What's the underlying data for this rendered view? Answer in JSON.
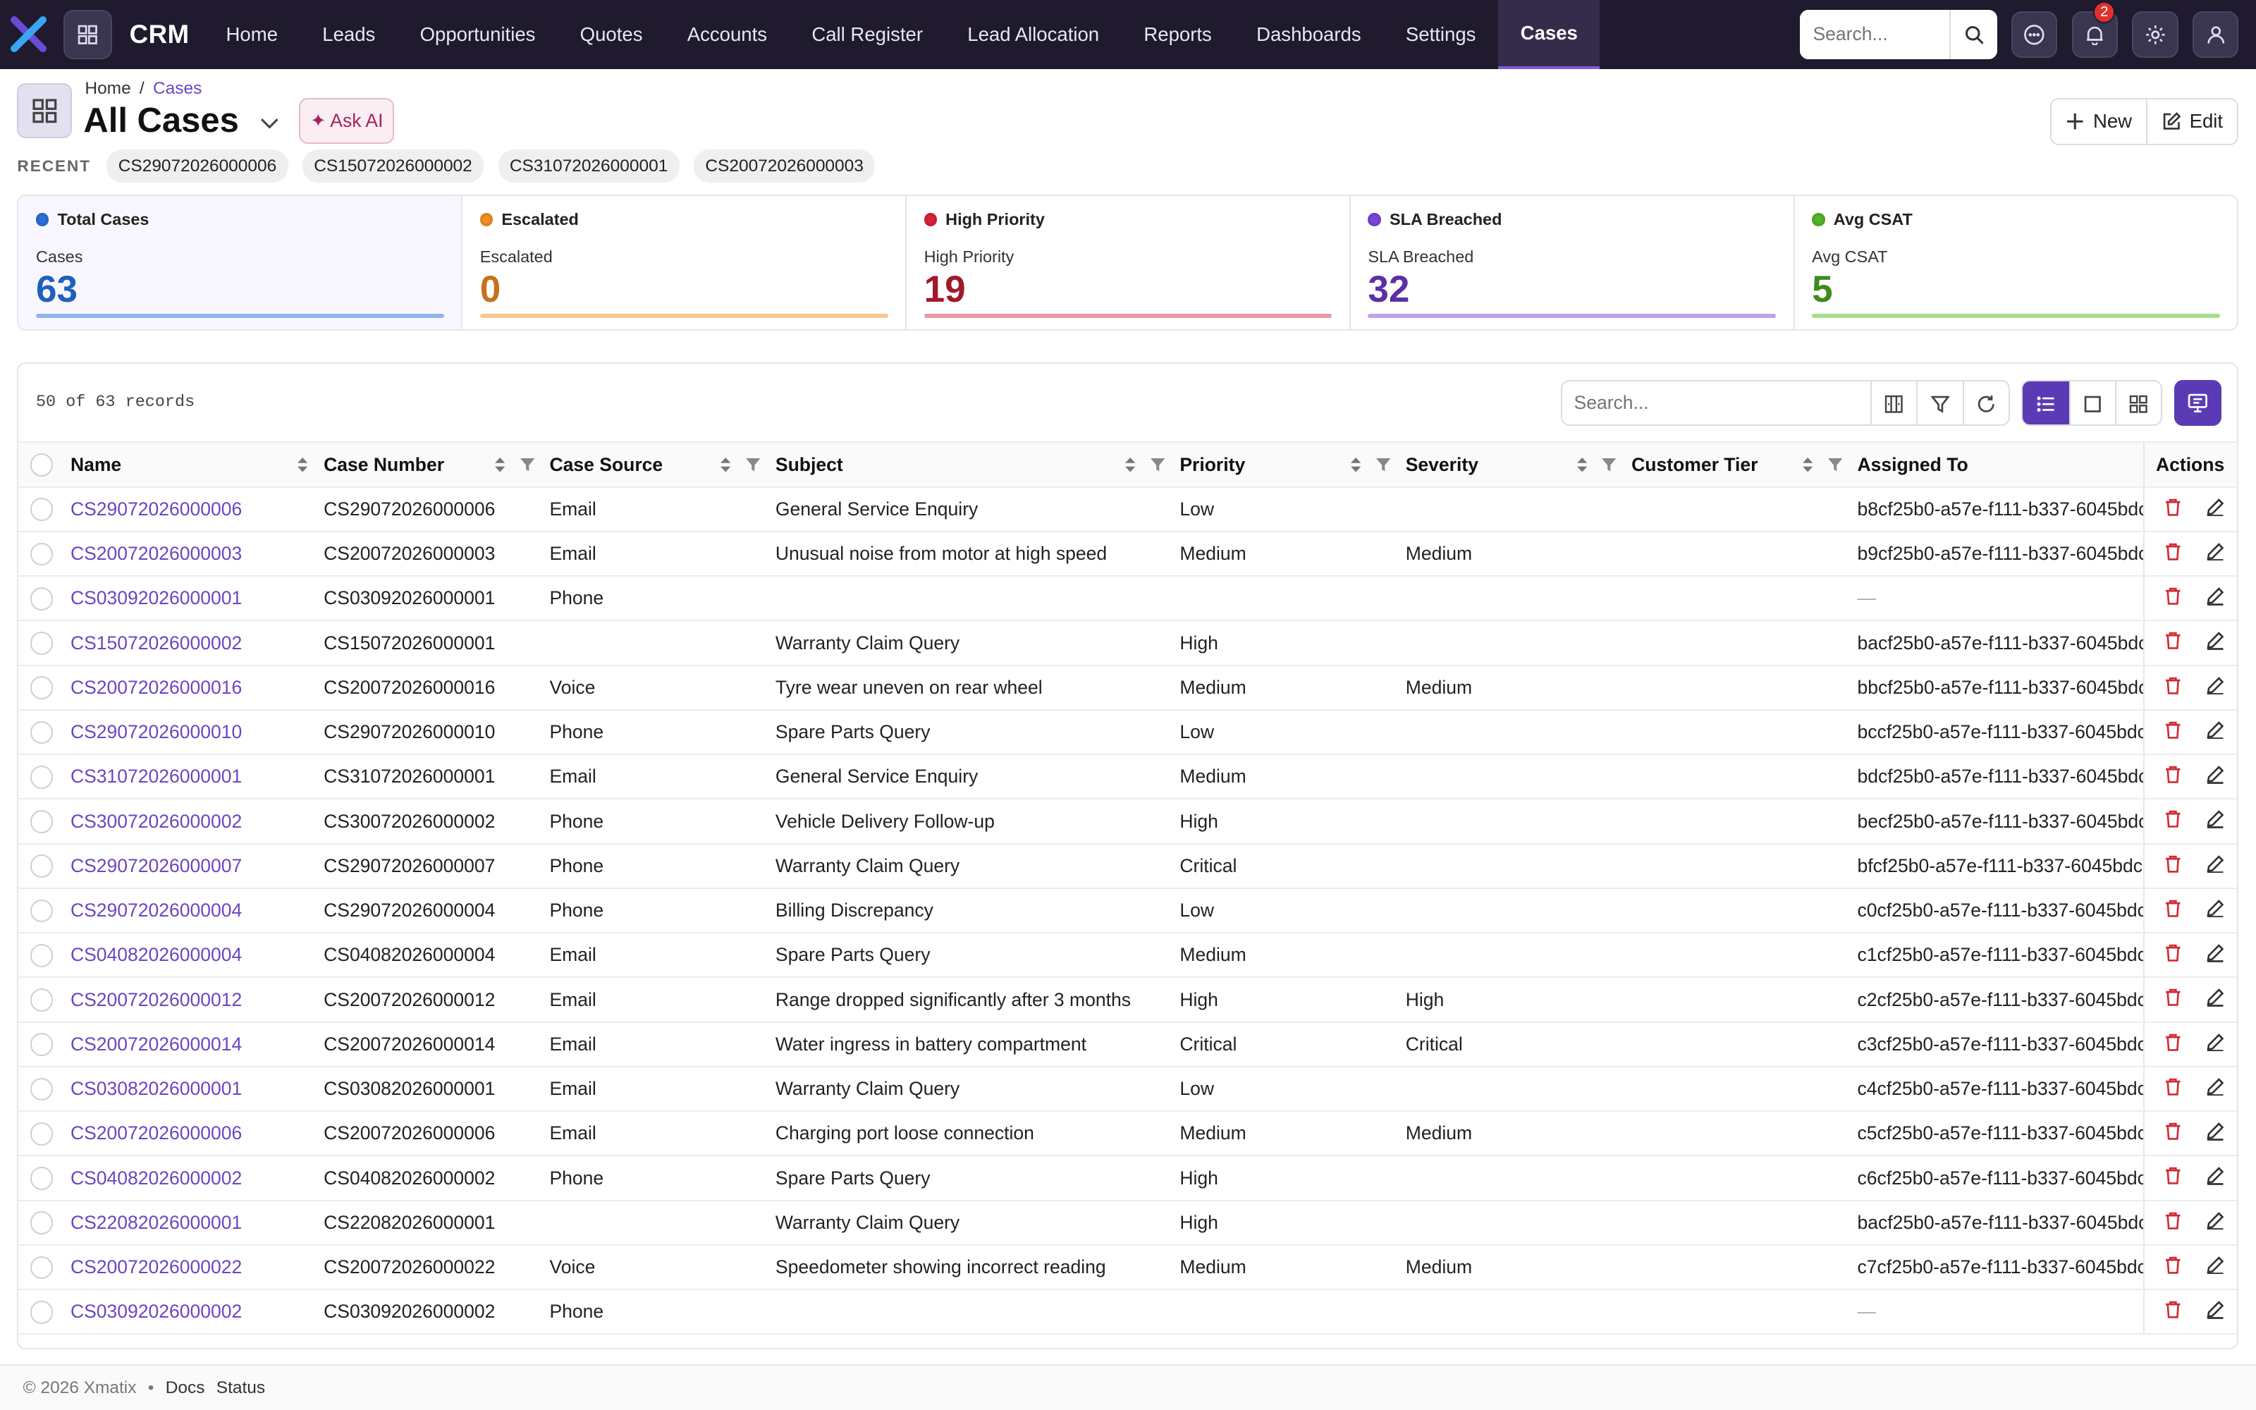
{
  "app": {
    "name": "CRM"
  },
  "nav": {
    "items": [
      "Home",
      "Leads",
      "Opportunities",
      "Quotes",
      "Accounts",
      "Call Register",
      "Lead Allocation",
      "Reports",
      "Dashboards",
      "Settings",
      "Cases"
    ],
    "active": "Cases",
    "search_placeholder": "Search...",
    "notification_count": "2"
  },
  "breadcrumb": {
    "home": "Home",
    "sep": "/",
    "current": "Cases"
  },
  "page": {
    "title": "All Cases",
    "ask_ai": "✦ Ask AI",
    "new_label": "New",
    "edit_label": "Edit"
  },
  "recent": {
    "label": "RECENT",
    "chips": [
      "CS29072026000006",
      "CS15072026000002",
      "CS31072026000001",
      "CS20072026000003"
    ]
  },
  "kpis": [
    {
      "title": "Total Cases",
      "label": "Cases",
      "value": "63",
      "color": "#1f5fbf",
      "dot": "#2b6fd6",
      "bar": "#8fb5ee"
    },
    {
      "title": "Escalated",
      "label": "Escalated",
      "value": "0",
      "color": "#c7721a",
      "dot": "#ef8f24",
      "bar": "#f6c98c"
    },
    {
      "title": "High Priority",
      "label": "High Priority",
      "value": "19",
      "color": "#a11a2a",
      "dot": "#d8243a",
      "bar": "#e99aa5"
    },
    {
      "title": "SLA Breached",
      "label": "SLA Breached",
      "value": "32",
      "color": "#5b2fa8",
      "dot": "#7c44d6",
      "bar": "#c0a3ea"
    },
    {
      "title": "Avg CSAT",
      "label": "Avg CSAT",
      "value": "5",
      "color": "#3f8a1c",
      "dot": "#52b52a",
      "bar": "#a9dc8f"
    }
  ],
  "table": {
    "records_text": "50 of 63 records",
    "search_placeholder": "Search...",
    "columns": [
      "Name",
      "Case Number",
      "Case Source",
      "Subject",
      "Priority",
      "Severity",
      "Customer Tier",
      "Assigned To",
      "Actions"
    ],
    "rows": [
      [
        "CS29072026000006",
        "CS29072026000006",
        "Email",
        "General Service Enquiry",
        "Low",
        "",
        "",
        "b8cf25b0-a57e-f111-b337-6045bdc"
      ],
      [
        "CS20072026000003",
        "CS20072026000003",
        "Email",
        "Unusual noise from motor at high speed",
        "Medium",
        "Medium",
        "",
        "b9cf25b0-a57e-f111-b337-6045bdc"
      ],
      [
        "CS03092026000001",
        "CS03092026000001",
        "Phone",
        "",
        "",
        "",
        "",
        "—"
      ],
      [
        "CS15072026000002",
        "CS15072026000001",
        "",
        "Warranty Claim Query",
        "High",
        "",
        "",
        "bacf25b0-a57e-f111-b337-6045bdc"
      ],
      [
        "CS20072026000016",
        "CS20072026000016",
        "Voice",
        "Tyre wear uneven on rear wheel",
        "Medium",
        "Medium",
        "",
        "bbcf25b0-a57e-f111-b337-6045bdc"
      ],
      [
        "CS29072026000010",
        "CS29072026000010",
        "Phone",
        "Spare Parts Query",
        "Low",
        "",
        "",
        "bccf25b0-a57e-f111-b337-6045bdc"
      ],
      [
        "CS31072026000001",
        "CS31072026000001",
        "Email",
        "General Service Enquiry",
        "Medium",
        "",
        "",
        "bdcf25b0-a57e-f111-b337-6045bdc"
      ],
      [
        "CS30072026000002",
        "CS30072026000002",
        "Phone",
        "Vehicle Delivery Follow-up",
        "High",
        "",
        "",
        "becf25b0-a57e-f111-b337-6045bdc"
      ],
      [
        "CS29072026000007",
        "CS29072026000007",
        "Phone",
        "Warranty Claim Query",
        "Critical",
        "",
        "",
        "bfcf25b0-a57e-f111-b337-6045bdc5"
      ],
      [
        "CS29072026000004",
        "CS29072026000004",
        "Phone",
        "Billing Discrepancy",
        "Low",
        "",
        "",
        "c0cf25b0-a57e-f111-b337-6045bdc"
      ],
      [
        "CS04082026000004",
        "CS04082026000004",
        "Email",
        "Spare Parts Query",
        "Medium",
        "",
        "",
        "c1cf25b0-a57e-f111-b337-6045bdc"
      ],
      [
        "CS20072026000012",
        "CS20072026000012",
        "Email",
        "Range dropped significantly after 3 months",
        "High",
        "High",
        "",
        "c2cf25b0-a57e-f111-b337-6045bdc"
      ],
      [
        "CS20072026000014",
        "CS20072026000014",
        "Email",
        "Water ingress in battery compartment",
        "Critical",
        "Critical",
        "",
        "c3cf25b0-a57e-f111-b337-6045bdc"
      ],
      [
        "CS03082026000001",
        "CS03082026000001",
        "Email",
        "Warranty Claim Query",
        "Low",
        "",
        "",
        "c4cf25b0-a57e-f111-b337-6045bdc"
      ],
      [
        "CS20072026000006",
        "CS20072026000006",
        "Email",
        "Charging port loose connection",
        "Medium",
        "Medium",
        "",
        "c5cf25b0-a57e-f111-b337-6045bdc"
      ],
      [
        "CS04082026000002",
        "CS04082026000002",
        "Phone",
        "Spare Parts Query",
        "High",
        "",
        "",
        "c6cf25b0-a57e-f111-b337-6045bdc"
      ],
      [
        "CS22082026000001",
        "CS22082026000001",
        "",
        "Warranty Claim Query",
        "High",
        "",
        "",
        "bacf25b0-a57e-f111-b337-6045bdc"
      ],
      [
        "CS20072026000022",
        "CS20072026000022",
        "Voice",
        "Speedometer showing incorrect reading",
        "Medium",
        "Medium",
        "",
        "c7cf25b0-a57e-f111-b337-6045bdc"
      ],
      [
        "CS03092026000002",
        "CS03092026000002",
        "Phone",
        "",
        "",
        "",
        "",
        "—"
      ]
    ]
  },
  "footer": {
    "copyright": "© 2026 Xmatix",
    "bullet": "•",
    "docs": "Docs",
    "status": "Status"
  },
  "icons": {
    "logo": "x-logo-icon",
    "apps": "grid-icon",
    "search": "search-icon",
    "chat": "chat-icon",
    "bell": "bell-icon",
    "settings": "gear-icon",
    "user": "user-icon"
  }
}
